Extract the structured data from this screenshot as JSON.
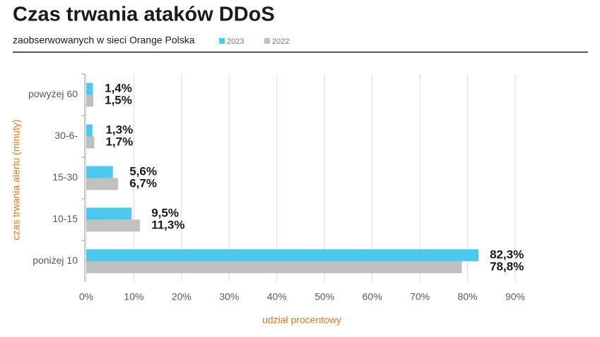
{
  "chart_data": {
    "type": "hbar",
    "title": "Czas trwania ataków DDoS",
    "subtitle": "zaobserwowanych w sieci Orange Polska",
    "x_label": "udział procentowy",
    "y_label": "czas trwania alertu (minuty)",
    "categories": [
      "powyżej 60",
      "30-6-",
      "15-30",
      "10-15",
      "poniżej 10"
    ],
    "series": [
      {
        "name": "2023",
        "color": "#4dc8ee",
        "values": [
          1.4,
          1.3,
          5.6,
          9.5,
          82.3
        ],
        "value_labels": [
          "1,4%",
          "1,3%",
          "5,6%",
          "9,5%",
          "82,3%"
        ]
      },
      {
        "name": "2022",
        "color": "#c0c0c0",
        "values": [
          1.5,
          1.7,
          6.7,
          11.3,
          78.8
        ],
        "value_labels": [
          "1,5%",
          "1,7%",
          "6,7%",
          "11,3%",
          "78,8%"
        ]
      }
    ],
    "xlim": [
      0,
      90
    ],
    "xticks": [
      {
        "value": 0,
        "label": "0%"
      },
      {
        "value": 10,
        "label": "10%"
      },
      {
        "value": 20,
        "label": "20%"
      },
      {
        "value": 30,
        "label": "30%"
      },
      {
        "value": 40,
        "label": "40%"
      },
      {
        "value": 50,
        "label": "50%"
      },
      {
        "value": 60,
        "label": "60%"
      },
      {
        "value": 70,
        "label": "70%"
      },
      {
        "value": 80,
        "label": "80%"
      },
      {
        "value": 90,
        "label": "90%"
      }
    ],
    "grid": true
  }
}
